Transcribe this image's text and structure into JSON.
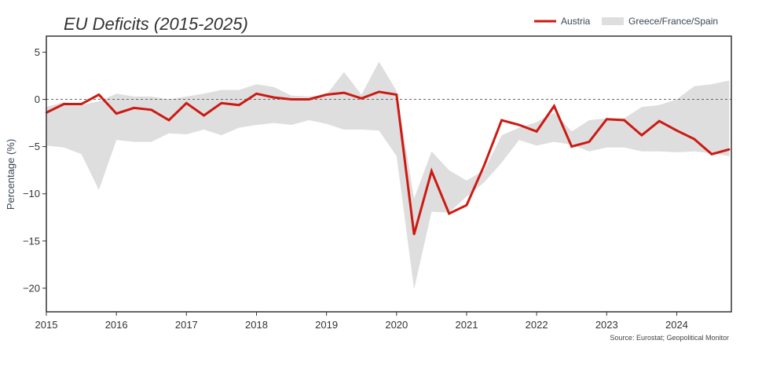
{
  "chart_data": {
    "type": "line",
    "title": "EU Deficits (2015-2025)",
    "ylabel": "Percentage (%)",
    "xlabel": "",
    "source": "Source: Eurostat; Geopolitical Monitor",
    "xlim": [
      2015.0,
      2024.78
    ],
    "ylim": [
      -22.5,
      6.7
    ],
    "y_ticks": [
      5,
      0,
      -5,
      -10,
      -15,
      -20
    ],
    "x_ticks": [
      2015,
      2016,
      2017,
      2018,
      2019,
      2020,
      2021,
      2022,
      2023,
      2024
    ],
    "reference_line": 0,
    "legend_position": "top-right",
    "grid": false,
    "colors": {
      "line": "#cc1a12",
      "band": "#dedede",
      "refline": "#666666",
      "frame": "#333333"
    },
    "x": [
      2015.0,
      2015.25,
      2015.5,
      2015.75,
      2016.0,
      2016.25,
      2016.5,
      2016.75,
      2017.0,
      2017.25,
      2017.5,
      2017.75,
      2018.0,
      2018.25,
      2018.5,
      2018.75,
      2019.0,
      2019.25,
      2019.5,
      2019.75,
      2020.0,
      2020.25,
      2020.5,
      2020.75,
      2021.0,
      2021.25,
      2021.5,
      2021.75,
      2022.0,
      2022.25,
      2022.5,
      2022.75,
      2023.0,
      2023.25,
      2023.5,
      2023.75,
      2024.0,
      2024.25,
      2024.5,
      2024.75
    ],
    "series": [
      {
        "name": "Austria",
        "type": "line",
        "values": [
          -1.4,
          -0.5,
          -0.5,
          0.5,
          -1.5,
          -0.9,
          -1.1,
          -2.2,
          -0.4,
          -1.7,
          -0.4,
          -0.6,
          0.6,
          0.2,
          0.0,
          0.0,
          0.5,
          0.7,
          0.1,
          0.8,
          0.5,
          -14.3,
          -7.6,
          -12.1,
          -11.2,
          -7.0,
          -2.2,
          -2.7,
          -3.4,
          -0.7,
          -5.0,
          -4.5,
          -2.1,
          -2.2,
          -3.8,
          -2.3,
          -3.3,
          -4.2,
          -5.8,
          -5.3
        ]
      },
      {
        "name": "Greece/France/Spain",
        "type": "area",
        "upper": [
          -0.8,
          -0.3,
          -0.6,
          -0.2,
          0.6,
          0.3,
          0.3,
          0.0,
          0.3,
          0.6,
          1.0,
          1.0,
          1.6,
          1.3,
          0.4,
          0.3,
          0.5,
          2.9,
          0.5,
          4.0,
          0.9,
          -10.5,
          -5.5,
          -7.5,
          -8.6,
          -7.5,
          -3.8,
          -3.0,
          -2.4,
          -1.4,
          -3.4,
          -2.2,
          -2.0,
          -2.0,
          -0.8,
          -0.6,
          0.0,
          1.4,
          1.6,
          2.0
        ],
        "lower": [
          -4.9,
          -5.1,
          -5.8,
          -9.6,
          -4.3,
          -4.5,
          -4.5,
          -3.6,
          -3.7,
          -3.2,
          -3.8,
          -3.0,
          -2.7,
          -2.5,
          -2.7,
          -2.2,
          -2.6,
          -3.2,
          -3.2,
          -3.3,
          -6.0,
          -20.1,
          -11.9,
          -12.0,
          -10.3,
          -8.8,
          -6.7,
          -4.3,
          -4.9,
          -4.5,
          -4.8,
          -5.5,
          -5.1,
          -5.1,
          -5.5,
          -5.5,
          -5.6,
          -5.5,
          -5.7,
          -6.0
        ]
      }
    ]
  }
}
